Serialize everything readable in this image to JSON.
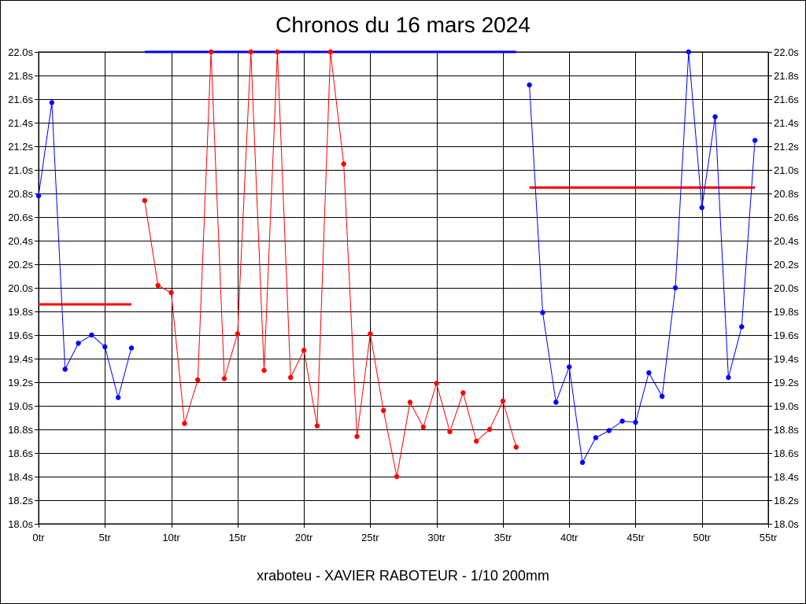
{
  "chart_data": {
    "type": "line",
    "title": "Chronos du 16 mars 2024",
    "footer": "xraboteu - XAVIER RABOTEUR - 1/10 200mm",
    "x_unit_suffix": "tr",
    "y_unit_suffix": "s",
    "xlim": [
      0,
      55
    ],
    "ylim": [
      18.0,
      22.0
    ],
    "x_ticks": [
      0,
      5,
      10,
      15,
      20,
      25,
      30,
      35,
      40,
      45,
      50,
      55
    ],
    "y_ticks": [
      18.0,
      18.2,
      18.4,
      18.6,
      18.8,
      19.0,
      19.2,
      19.4,
      19.6,
      19.8,
      20.0,
      20.2,
      20.4,
      20.6,
      20.8,
      21.0,
      21.2,
      21.4,
      21.6,
      21.8,
      22.0
    ],
    "grid": true,
    "y_axis_both_sides": true,
    "series": [
      {
        "color": "#0000ff",
        "x": [
          0,
          1,
          2,
          3,
          4,
          5,
          6,
          7
        ],
        "values": [
          20.78,
          21.57,
          19.31,
          19.53,
          19.6,
          19.5,
          19.07,
          19.49
        ]
      },
      {
        "color": "#ff0000",
        "x": [
          8,
          9,
          10,
          11,
          12,
          13,
          14,
          15,
          16,
          17,
          18,
          19,
          20,
          21,
          22,
          23,
          24,
          25,
          26,
          27,
          28,
          29,
          30,
          31,
          32,
          33,
          34,
          35,
          36
        ],
        "values": [
          20.74,
          20.02,
          19.96,
          18.85,
          19.22,
          22.0,
          19.23,
          19.61,
          22.0,
          19.3,
          22.0,
          19.24,
          19.47,
          18.83,
          22.0,
          21.05,
          18.74,
          19.61,
          18.96,
          18.4,
          19.03,
          18.82,
          19.19,
          18.78,
          19.11,
          18.7,
          18.8,
          19.04,
          18.65
        ]
      },
      {
        "color": "#0000ff",
        "x": [
          37,
          38,
          39,
          40,
          41,
          42,
          43,
          44,
          45,
          46,
          47,
          48,
          49,
          50,
          51,
          52,
          53,
          54
        ],
        "values": [
          21.72,
          19.79,
          19.03,
          19.33,
          18.52,
          18.73,
          18.79,
          18.87,
          18.86,
          19.28,
          19.08,
          20.0,
          22.0,
          20.68,
          21.45,
          19.24,
          19.67,
          21.25
        ]
      }
    ],
    "mean_lines": [
      {
        "color": "#ff0000",
        "x_start": 0,
        "x_end": 7,
        "value": 19.86
      },
      {
        "color": "#0000ff",
        "x_start": 8,
        "x_end": 36,
        "value": 22.0
      },
      {
        "color": "#ff0000",
        "x_start": 37,
        "x_end": 54,
        "value": 20.85
      }
    ]
  }
}
